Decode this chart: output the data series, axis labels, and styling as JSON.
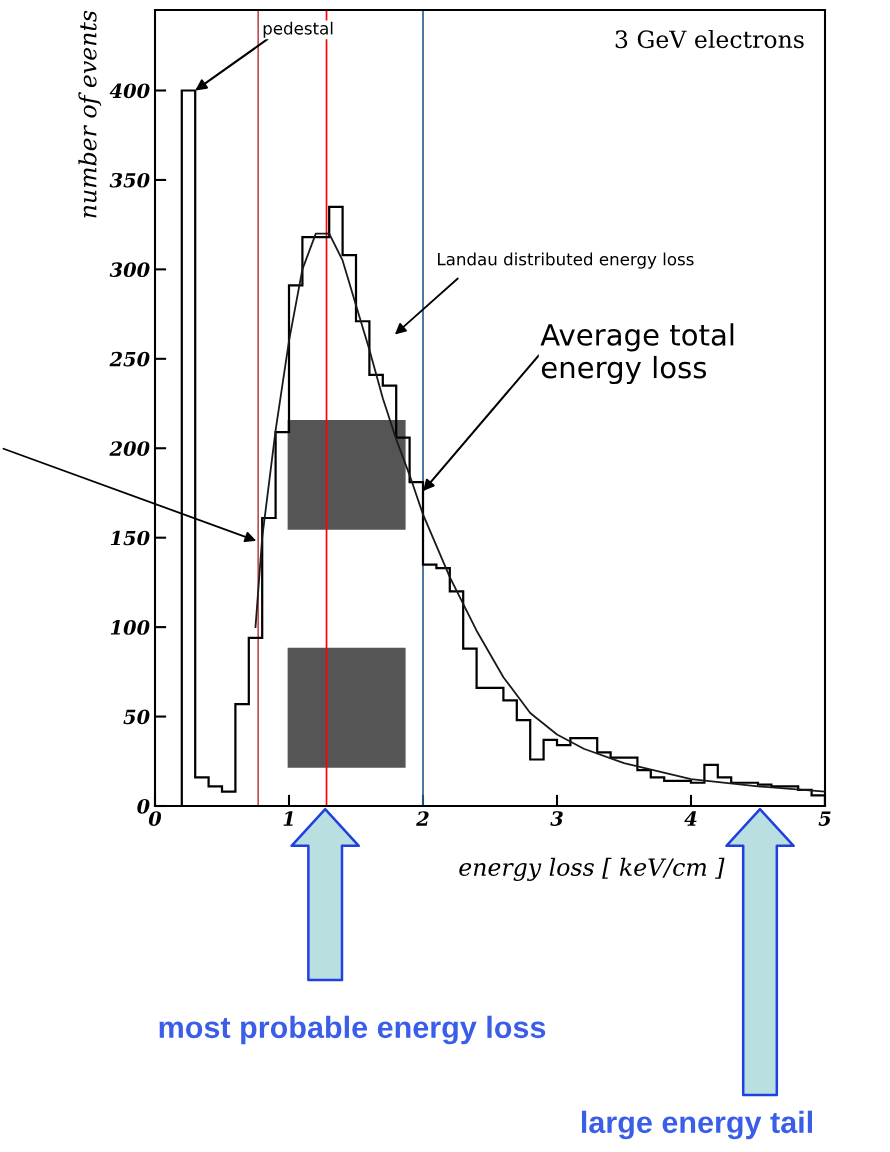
{
  "chart_data": {
    "type": "histogram",
    "xlabel": "energy loss [ keV/cm ]",
    "ylabel": "number of events",
    "bins": [
      0.2,
      0.3,
      0.4,
      0.5,
      0.6,
      0.7,
      0.8,
      0.9,
      1.0,
      1.1,
      1.2,
      1.3,
      1.4,
      1.5,
      1.6,
      1.7,
      1.8,
      1.9,
      2.0,
      2.1,
      2.2,
      2.3,
      2.4,
      2.5,
      2.6,
      2.7,
      2.8,
      2.9,
      3.0,
      3.1,
      3.2,
      3.3,
      3.4,
      3.5,
      3.6,
      3.7,
      3.8,
      3.9,
      4.0,
      4.1,
      4.2,
      4.3,
      4.4,
      4.5,
      4.6,
      4.7,
      4.8,
      4.9,
      5.0
    ],
    "values": [
      400,
      16,
      11,
      8,
      57,
      94,
      161,
      209,
      291,
      318,
      318,
      335,
      308,
      271,
      241,
      235,
      206,
      181,
      135,
      133,
      120,
      88,
      66,
      66,
      59,
      48,
      26,
      37,
      34,
      38,
      38,
      30,
      27,
      27,
      20,
      16,
      14,
      14,
      13,
      23,
      16,
      13,
      13,
      12,
      11,
      11,
      9,
      6
    ],
    "color": "#000000",
    "series": [
      {
        "type": "line",
        "color": "#1a1a1a",
        "x": [
          0.75,
          0.8,
          0.9,
          1.0,
          1.1,
          1.2,
          1.3,
          1.4,
          1.5,
          1.6,
          1.7,
          1.8,
          1.9,
          2.0,
          2.2,
          2.4,
          2.6,
          2.8,
          3.0,
          3.2,
          3.5,
          4.0,
          4.5,
          5.0
        ],
        "values": [
          100,
          150,
          210,
          260,
          300,
          320,
          320,
          305,
          280,
          255,
          228,
          205,
          185,
          163,
          128,
          98,
          72,
          52,
          40,
          32,
          24,
          15,
          11,
          8
        ]
      }
    ],
    "xlim": [
      0,
      5
    ],
    "xticks": [
      0,
      1,
      2,
      3,
      4,
      5
    ],
    "ylim": [
      0,
      445
    ],
    "yticks": [
      0,
      50,
      100,
      150,
      200,
      250,
      300,
      350,
      400
    ],
    "grid": false,
    "ref_lines": [
      {
        "axis": "x",
        "value": 0.77,
        "color": "#c05050"
      },
      {
        "axis": "x",
        "value": 1.28,
        "color": "#ff0000"
      },
      {
        "axis": "x",
        "value": 2.0,
        "color": "#2a6090"
      }
    ],
    "annotations": [
      "3 GeV electrons",
      {
        "text": "pedestal",
        "x": 0.3,
        "y": 400
      },
      "Landau distributed energy loss",
      {
        "text": "Average total energy loss",
        "x": 2.0,
        "y": 176
      },
      "most probable energy loss",
      "large energy tail"
    ]
  }
}
